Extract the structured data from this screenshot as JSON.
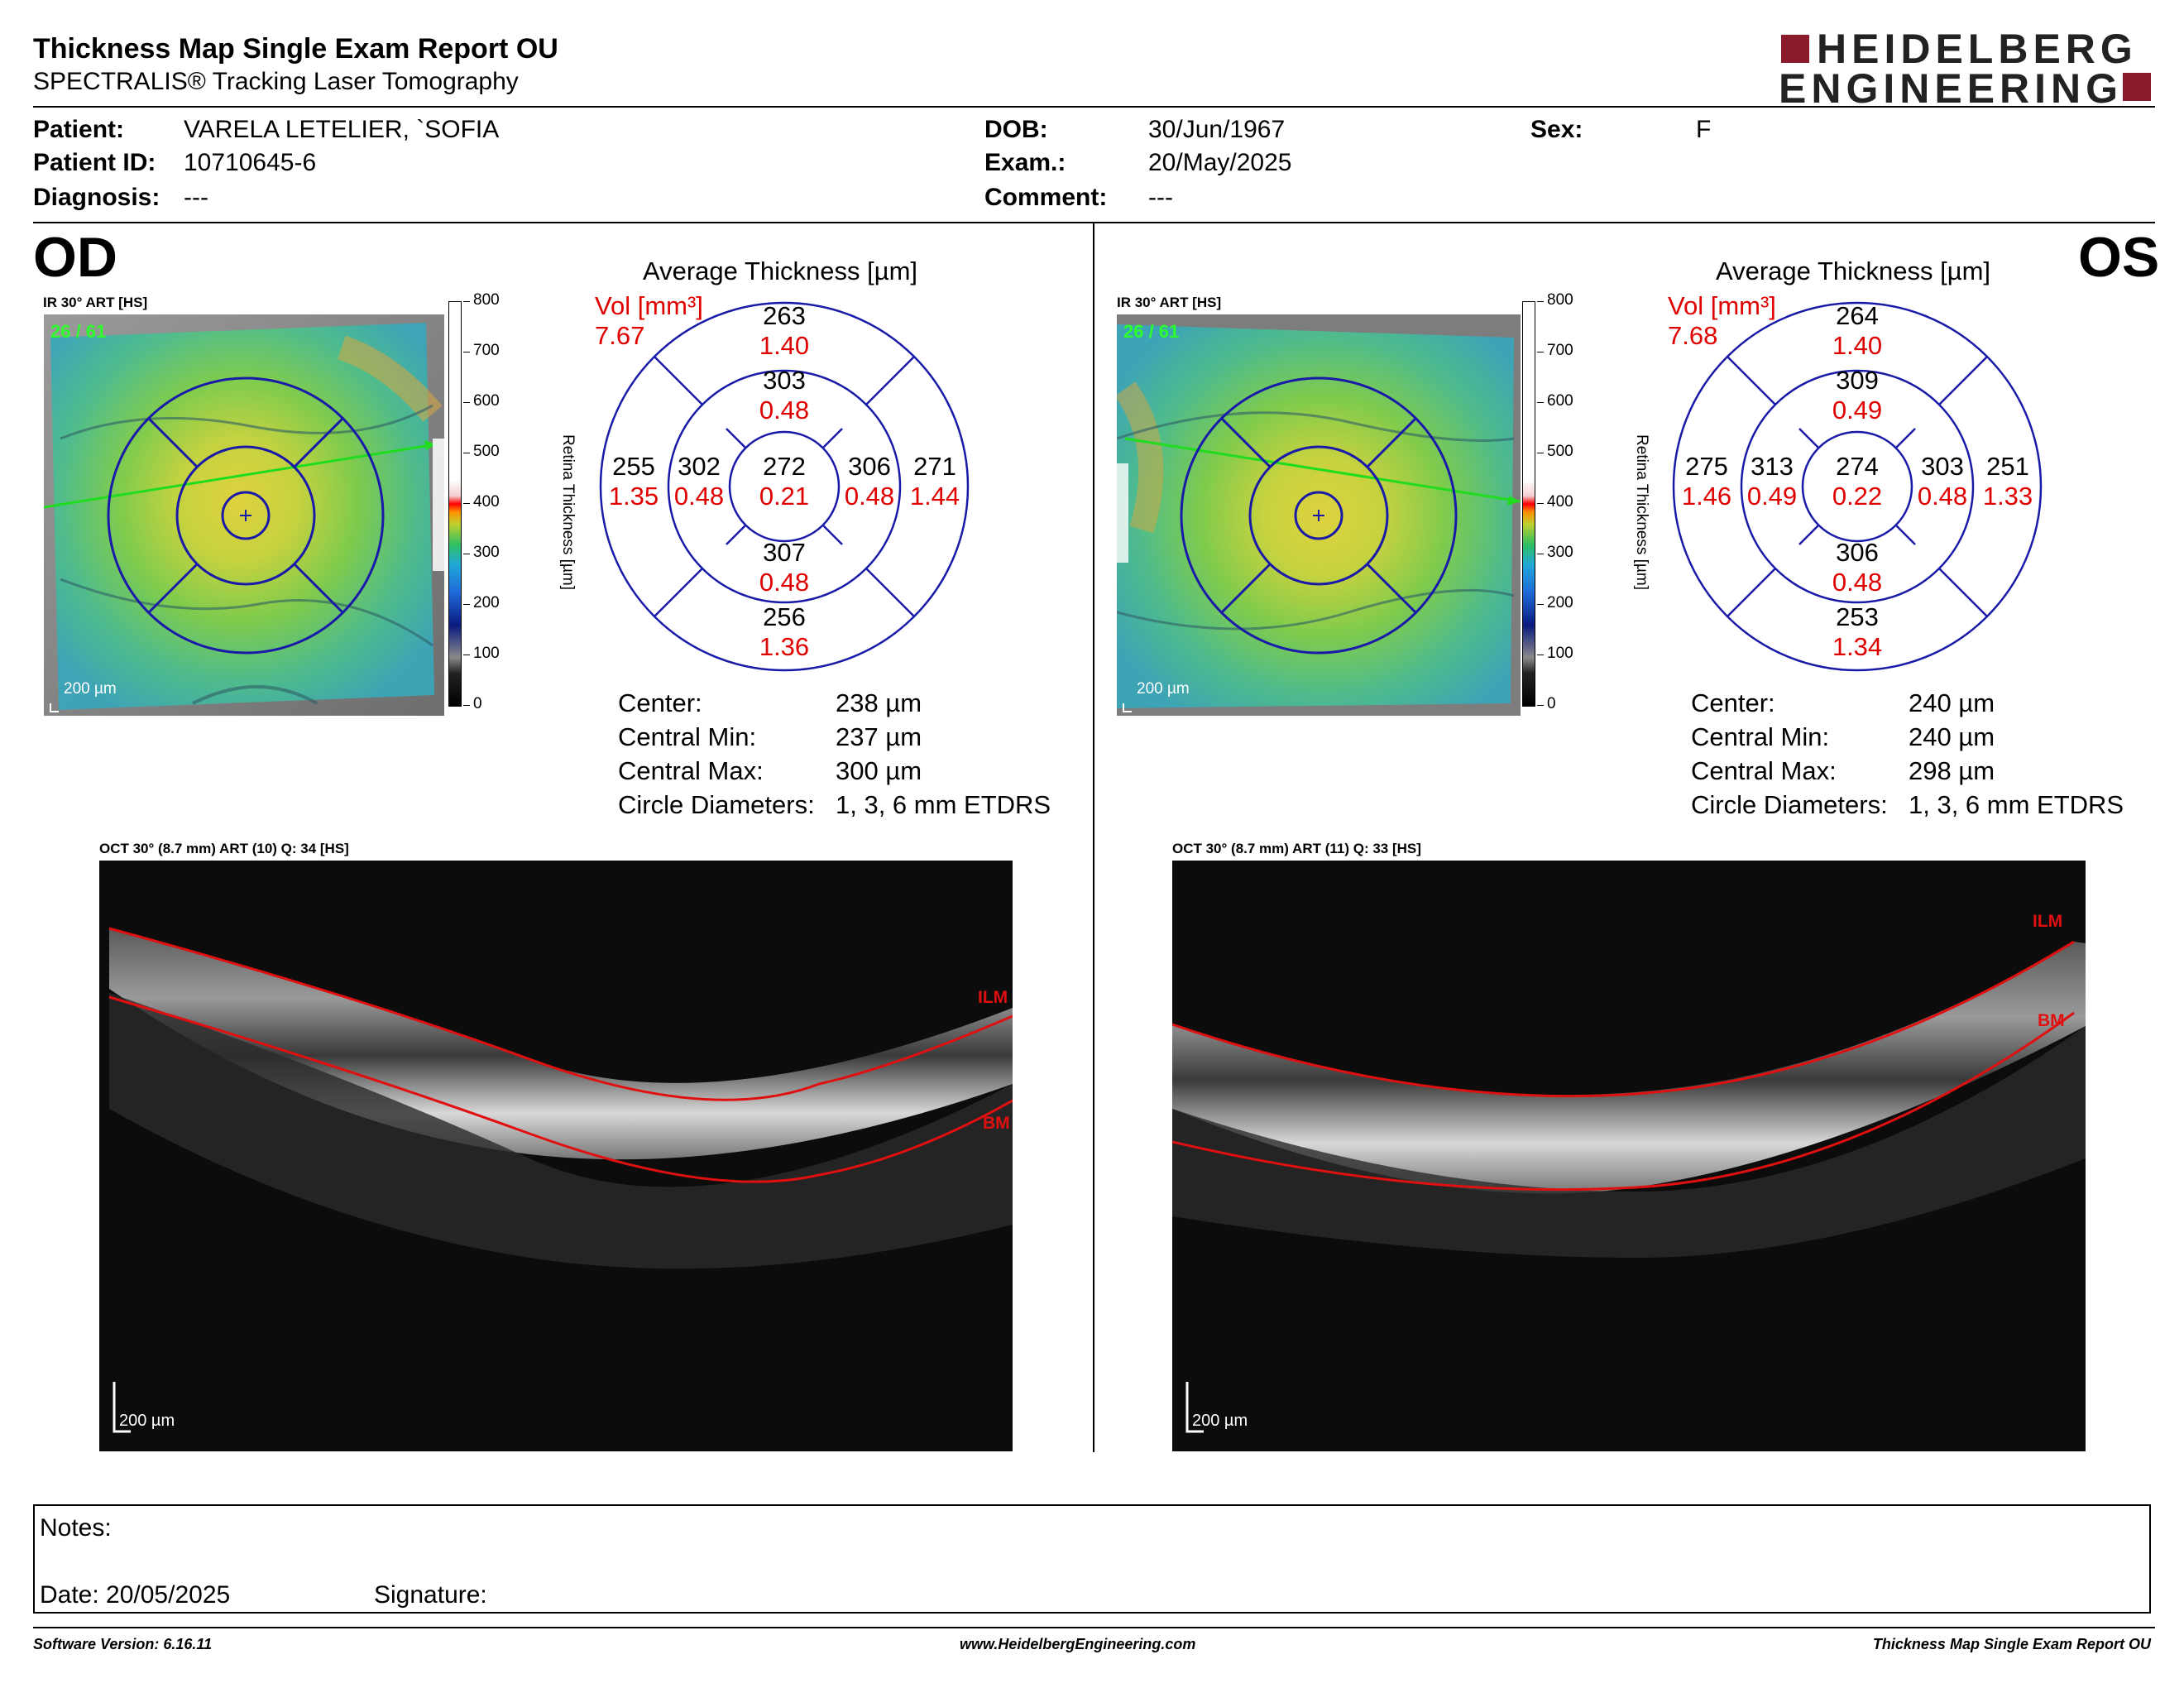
{
  "header": {
    "title": "Thickness Map Single Exam Report OU",
    "subtitle": "SPECTRALIS® Tracking Laser Tomography",
    "logo_line1": "HEIDELBERG",
    "logo_line2": "ENGINEERING",
    "logo_color": "#8b1a2b"
  },
  "patient": {
    "patient_label": "Patient:",
    "patient_value": "VARELA LETELIER, `SOFIA",
    "id_label": "Patient ID:",
    "id_value": "10710645-6",
    "diagnosis_label": "Diagnosis:",
    "diagnosis_value": "---",
    "dob_label": "DOB:",
    "dob_value": "30/Jun/1967",
    "exam_label": "Exam.:",
    "exam_value": "20/May/2025",
    "comment_label": "Comment:",
    "comment_value": "---",
    "sex_label": "Sex:",
    "sex_value": "F"
  },
  "colorbar": {
    "ticks": [
      "800",
      "700",
      "600",
      "500",
      "400",
      "300",
      "200",
      "100",
      "0"
    ],
    "label": "Retina Thickness [µm]"
  },
  "od": {
    "eye_label": "OD",
    "ir_label": "IR 30° ART [HS]",
    "ir_counter": "26 / 61",
    "scale": "200 µm",
    "avg_title": "Average Thickness [µm]",
    "vol_label": "Vol [mm³]",
    "vol_value": "7.67",
    "grid": {
      "center": {
        "t": "272",
        "v": "0.21"
      },
      "inner_top": {
        "t": "303",
        "v": "0.48"
      },
      "inner_bottom": {
        "t": "307",
        "v": "0.48"
      },
      "inner_left": {
        "t": "302",
        "v": "0.48"
      },
      "inner_right": {
        "t": "306",
        "v": "0.48"
      },
      "outer_top": {
        "t": "263",
        "v": "1.40"
      },
      "outer_bottom": {
        "t": "256",
        "v": "1.36"
      },
      "outer_left": {
        "t": "255",
        "v": "1.35"
      },
      "outer_right": {
        "t": "271",
        "v": "1.44"
      }
    },
    "stats": [
      {
        "label": "Center:",
        "value": "238 µm"
      },
      {
        "label": "Central Min:",
        "value": "237 µm"
      },
      {
        "label": "Central Max:",
        "value": "300 µm"
      },
      {
        "label": "Circle Diameters:",
        "value": "1, 3, 6 mm ETDRS"
      }
    ],
    "oct_label": "OCT 30° (8.7 mm) ART (10) Q: 34 [HS]",
    "ilm": "ILM",
    "bm": "BM",
    "oct_scale": "200 µm"
  },
  "os": {
    "eye_label": "OS",
    "ir_label": "IR 30° ART [HS]",
    "ir_counter": "26 / 61",
    "scale": "200 µm",
    "avg_title": "Average Thickness [µm]",
    "vol_label": "Vol [mm³]",
    "vol_value": "7.68",
    "grid": {
      "center": {
        "t": "274",
        "v": "0.22"
      },
      "inner_top": {
        "t": "309",
        "v": "0.49"
      },
      "inner_bottom": {
        "t": "306",
        "v": "0.48"
      },
      "inner_left": {
        "t": "313",
        "v": "0.49"
      },
      "inner_right": {
        "t": "303",
        "v": "0.48"
      },
      "outer_top": {
        "t": "264",
        "v": "1.40"
      },
      "outer_bottom": {
        "t": "253",
        "v": "1.34"
      },
      "outer_left": {
        "t": "275",
        "v": "1.46"
      },
      "outer_right": {
        "t": "251",
        "v": "1.33"
      }
    },
    "stats": [
      {
        "label": "Center:",
        "value": "240 µm"
      },
      {
        "label": "Central Min:",
        "value": "240 µm"
      },
      {
        "label": "Central Max:",
        "value": "298 µm"
      },
      {
        "label": "Circle Diameters:",
        "value": "1, 3, 6 mm ETDRS"
      }
    ],
    "oct_label": "OCT 30° (8.7 mm) ART (11) Q: 33 [HS]",
    "ilm": "ILM",
    "bm": "BM",
    "oct_scale": "200 µm"
  },
  "notes": {
    "notes_label": "Notes:",
    "date_label": "Date: 20/05/2025",
    "signature_label": "Signature:"
  },
  "footer": {
    "software": "Software Version: 6.16.11",
    "website": "www.HeidelbergEngineering.com",
    "report": "Thickness Map Single Exam Report OU"
  },
  "colors": {
    "red_text": "#e00000",
    "grid_blue": "#1a1aa8",
    "ilm_red": "#e01010"
  }
}
